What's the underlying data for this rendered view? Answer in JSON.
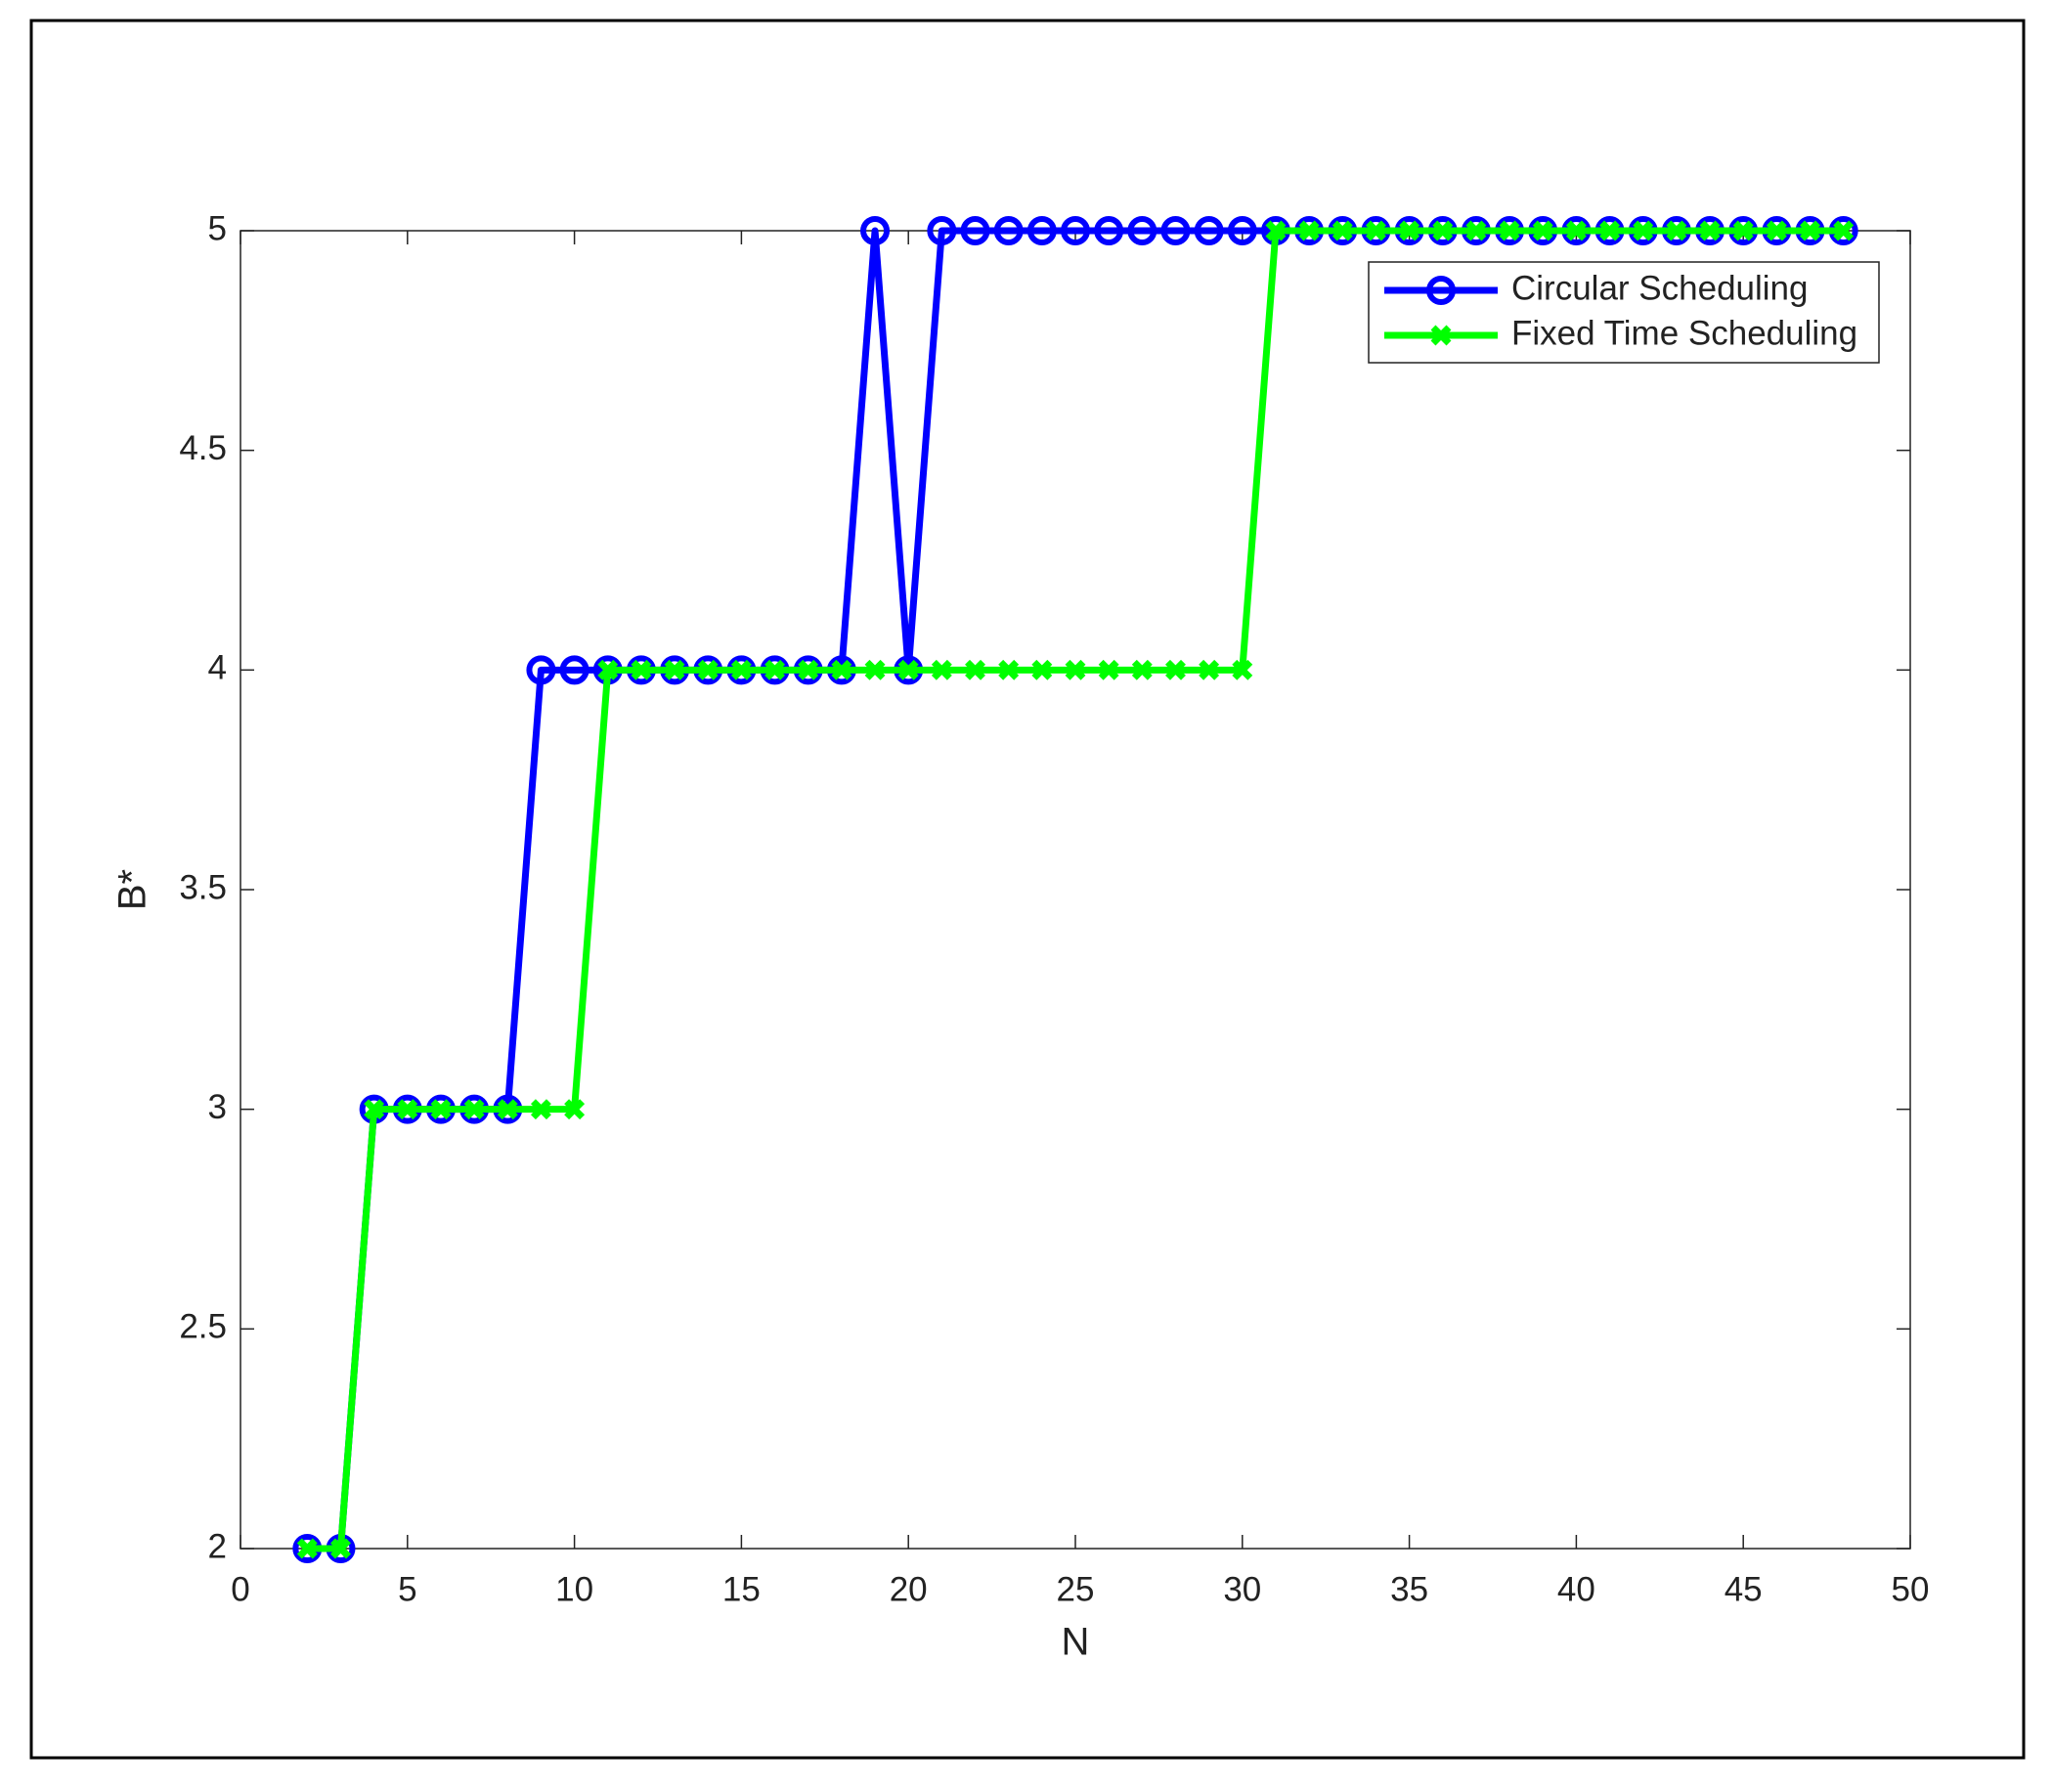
{
  "chart_data": {
    "type": "line",
    "xlabel": "N",
    "ylabel": "B*",
    "x": [
      2,
      3,
      4,
      5,
      6,
      7,
      8,
      9,
      10,
      11,
      12,
      13,
      14,
      15,
      16,
      17,
      18,
      19,
      20,
      21,
      22,
      23,
      24,
      25,
      26,
      27,
      28,
      29,
      30,
      31,
      32,
      33,
      34,
      35,
      36,
      37,
      38,
      39,
      40,
      41,
      42,
      43,
      44,
      45,
      46,
      47,
      48
    ],
    "series": [
      {
        "name": "Circular Scheduling",
        "color": "#0000ff",
        "marker": "o",
        "values": [
          2,
          2,
          3,
          3,
          3,
          3,
          3,
          4,
          4,
          4,
          4,
          4,
          4,
          4,
          4,
          4,
          4,
          5,
          4,
          5,
          5,
          5,
          5,
          5,
          5,
          5,
          5,
          5,
          5,
          5,
          5,
          5,
          5,
          5,
          5,
          5,
          5,
          5,
          5,
          5,
          5,
          5,
          5,
          5,
          5,
          5,
          5
        ]
      },
      {
        "name": "Fixed Time Scheduling",
        "color": "#00ff00",
        "marker": "x",
        "values": [
          2,
          2,
          3,
          3,
          3,
          3,
          3,
          3,
          3,
          4,
          4,
          4,
          4,
          4,
          4,
          4,
          4,
          4,
          4,
          4,
          4,
          4,
          4,
          4,
          4,
          4,
          4,
          4,
          4,
          5,
          5,
          5,
          5,
          5,
          5,
          5,
          5,
          5,
          5,
          5,
          5,
          5,
          5,
          5,
          5,
          5,
          5
        ]
      }
    ],
    "xlim": [
      0,
      50
    ],
    "xticks": [
      0,
      5,
      10,
      15,
      20,
      25,
      30,
      35,
      40,
      45,
      50
    ],
    "ylim": [
      2,
      5
    ],
    "yticks": [
      2,
      2.5,
      3,
      3.5,
      4,
      4.5,
      5
    ],
    "legend": "northeast",
    "grid": false
  }
}
